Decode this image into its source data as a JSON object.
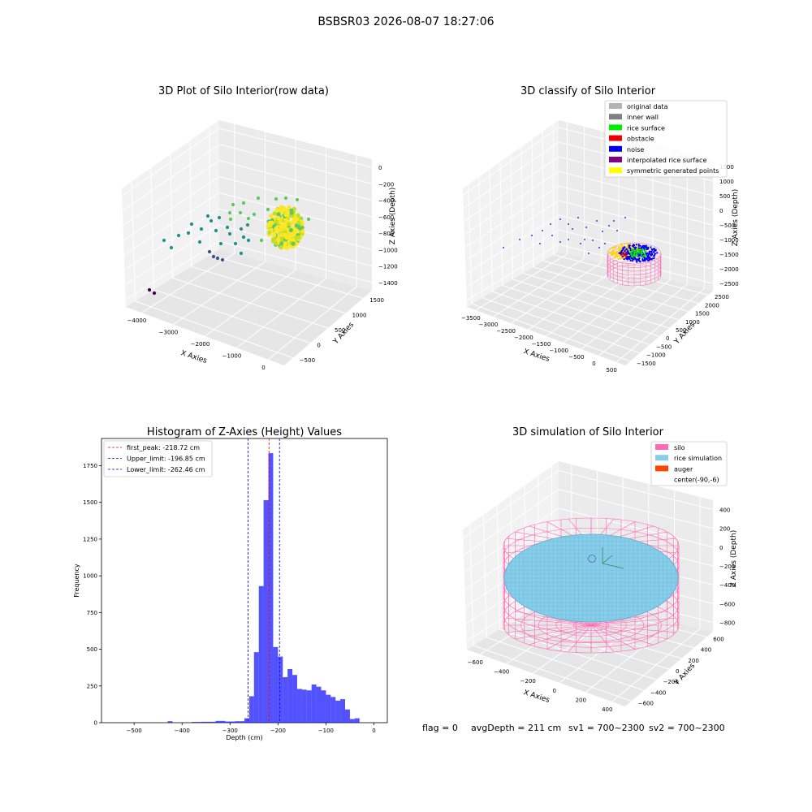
{
  "suptitle": "BSBSR03 2026-08-07 18:27:06",
  "status": {
    "flag": "flag = 0",
    "avg_depth": "avgDepth = 211 cm",
    "sv1": "sv1 = 700~2300",
    "sv2": "sv2 = 700~2300"
  },
  "chart_data": [
    {
      "type": "scatter3d",
      "title": "3D Plot of Silo Interior(row data)",
      "xlabel": "X Axies",
      "ylabel": "Y Axies",
      "zlabel": "Z Axies (Depth)",
      "x_ticks": [
        "−4000",
        "−3000",
        "−2000",
        "−1000",
        "0"
      ],
      "y_ticks": [
        "−500",
        "0",
        "500",
        "1000",
        "1500"
      ],
      "z_ticks": [
        "0",
        "−200",
        "−400",
        "−600",
        "−800",
        "−1000",
        "−1200",
        "−1400"
      ],
      "colormap": [
        "#440154",
        "#3b528b",
        "#21908d",
        "#5dc863",
        "#fde725"
      ]
    },
    {
      "type": "scatter3d",
      "title": "3D classify of Silo Interior",
      "xlabel": "X Axies",
      "ylabel": "Y Axies",
      "zlabel": "Z Axies (Depth)",
      "x_ticks": [
        "−3500",
        "−3000",
        "−2500",
        "−2000",
        "−1500",
        "−1000",
        "−500",
        "0",
        "500"
      ],
      "y_ticks": [
        "−1500",
        "−1000",
        "−500",
        "0",
        "500",
        "1000",
        "1500",
        "2000",
        "2500"
      ],
      "z_ticks": [
        "1500",
        "1000",
        "500",
        "0",
        "−500",
        "−1000",
        "−1500",
        "−2000",
        "−2500"
      ],
      "legend": [
        {
          "label": "original data",
          "color": "#b3b3b3"
        },
        {
          "label": "inner wall",
          "color": "#808080"
        },
        {
          "label": "rice surface",
          "color": "#00ee00"
        },
        {
          "label": "obstacle",
          "color": "#ee0000"
        },
        {
          "label": "noise",
          "color": "#0000ee"
        },
        {
          "label": "interpolated rice surface",
          "color": "#800080"
        },
        {
          "label": "symmetric generated points",
          "color": "#ffff00"
        }
      ],
      "legend_position": "upper right"
    },
    {
      "type": "bar",
      "title": "Histogram of Z-Axies (Height) Values",
      "xlabel": "Depth (cm)",
      "ylabel": "Frequency",
      "xlim": [
        -568,
        28
      ],
      "ylim": [
        0,
        1935
      ],
      "x_ticks": [
        -500,
        -400,
        -300,
        -200,
        -100,
        0
      ],
      "x_tick_labels": [
        "−500",
        "−400",
        "−300",
        "−200",
        "−100",
        "0"
      ],
      "y_ticks": [
        0,
        250,
        500,
        750,
        1000,
        1250,
        1500,
        1750
      ],
      "bar_color": "#0000ff",
      "bin_width": 10,
      "bins": [
        [
          -430,
          10
        ],
        [
          -380,
          5
        ],
        [
          -370,
          5
        ],
        [
          -360,
          6
        ],
        [
          -350,
          6
        ],
        [
          -340,
          6
        ],
        [
          -330,
          12
        ],
        [
          -320,
          12
        ],
        [
          -310,
          8
        ],
        [
          -300,
          8
        ],
        [
          -290,
          10
        ],
        [
          -280,
          10
        ],
        [
          -270,
          30
        ],
        [
          -260,
          180
        ],
        [
          -250,
          480
        ],
        [
          -240,
          930
        ],
        [
          -230,
          1515
        ],
        [
          -220,
          1835
        ],
        [
          -210,
          515
        ],
        [
          -200,
          450
        ],
        [
          -190,
          310
        ],
        [
          -180,
          365
        ],
        [
          -170,
          325
        ],
        [
          -160,
          230
        ],
        [
          -150,
          225
        ],
        [
          -140,
          220
        ],
        [
          -130,
          260
        ],
        [
          -120,
          245
        ],
        [
          -110,
          220
        ],
        [
          -100,
          190
        ],
        [
          -90,
          175
        ],
        [
          -80,
          150
        ],
        [
          -70,
          160
        ],
        [
          -60,
          90
        ],
        [
          -50,
          25
        ],
        [
          -40,
          30
        ]
      ],
      "vlines": [
        {
          "label": "first_peak: -218.72 cm",
          "x": -218.72,
          "color": "#ff0000"
        },
        {
          "label": "Upper_limit: -196.85 cm",
          "x": -196.85,
          "color": "#0000ff"
        },
        {
          "label": "Lower_limit: -262.46 cm",
          "x": -262.46,
          "color": "#0000ff"
        }
      ],
      "legend_position": "upper left"
    },
    {
      "type": "surface3d",
      "title": "3D simulation of Silo Interior",
      "xlabel": "X Axies",
      "ylabel": "Y Axies",
      "zlabel": "Z Axies (Depth)",
      "x_ticks": [
        "−600",
        "−400",
        "−200",
        "0",
        "200",
        "400"
      ],
      "y_ticks": [
        "−600",
        "−400",
        "−200",
        "0",
        "200",
        "400",
        "600"
      ],
      "z_ticks": [
        "400",
        "200",
        "0",
        "−200",
        "−400",
        "−600",
        "−800"
      ],
      "legend": [
        {
          "label": "silo",
          "color": "#ff69b4"
        },
        {
          "label": "rice simulation",
          "color": "#87ceeb"
        },
        {
          "label": "auger",
          "color": "#ff4500"
        },
        {
          "label": "center(-90,-6)",
          "color": ""
        }
      ],
      "legend_position": "upper right"
    }
  ]
}
